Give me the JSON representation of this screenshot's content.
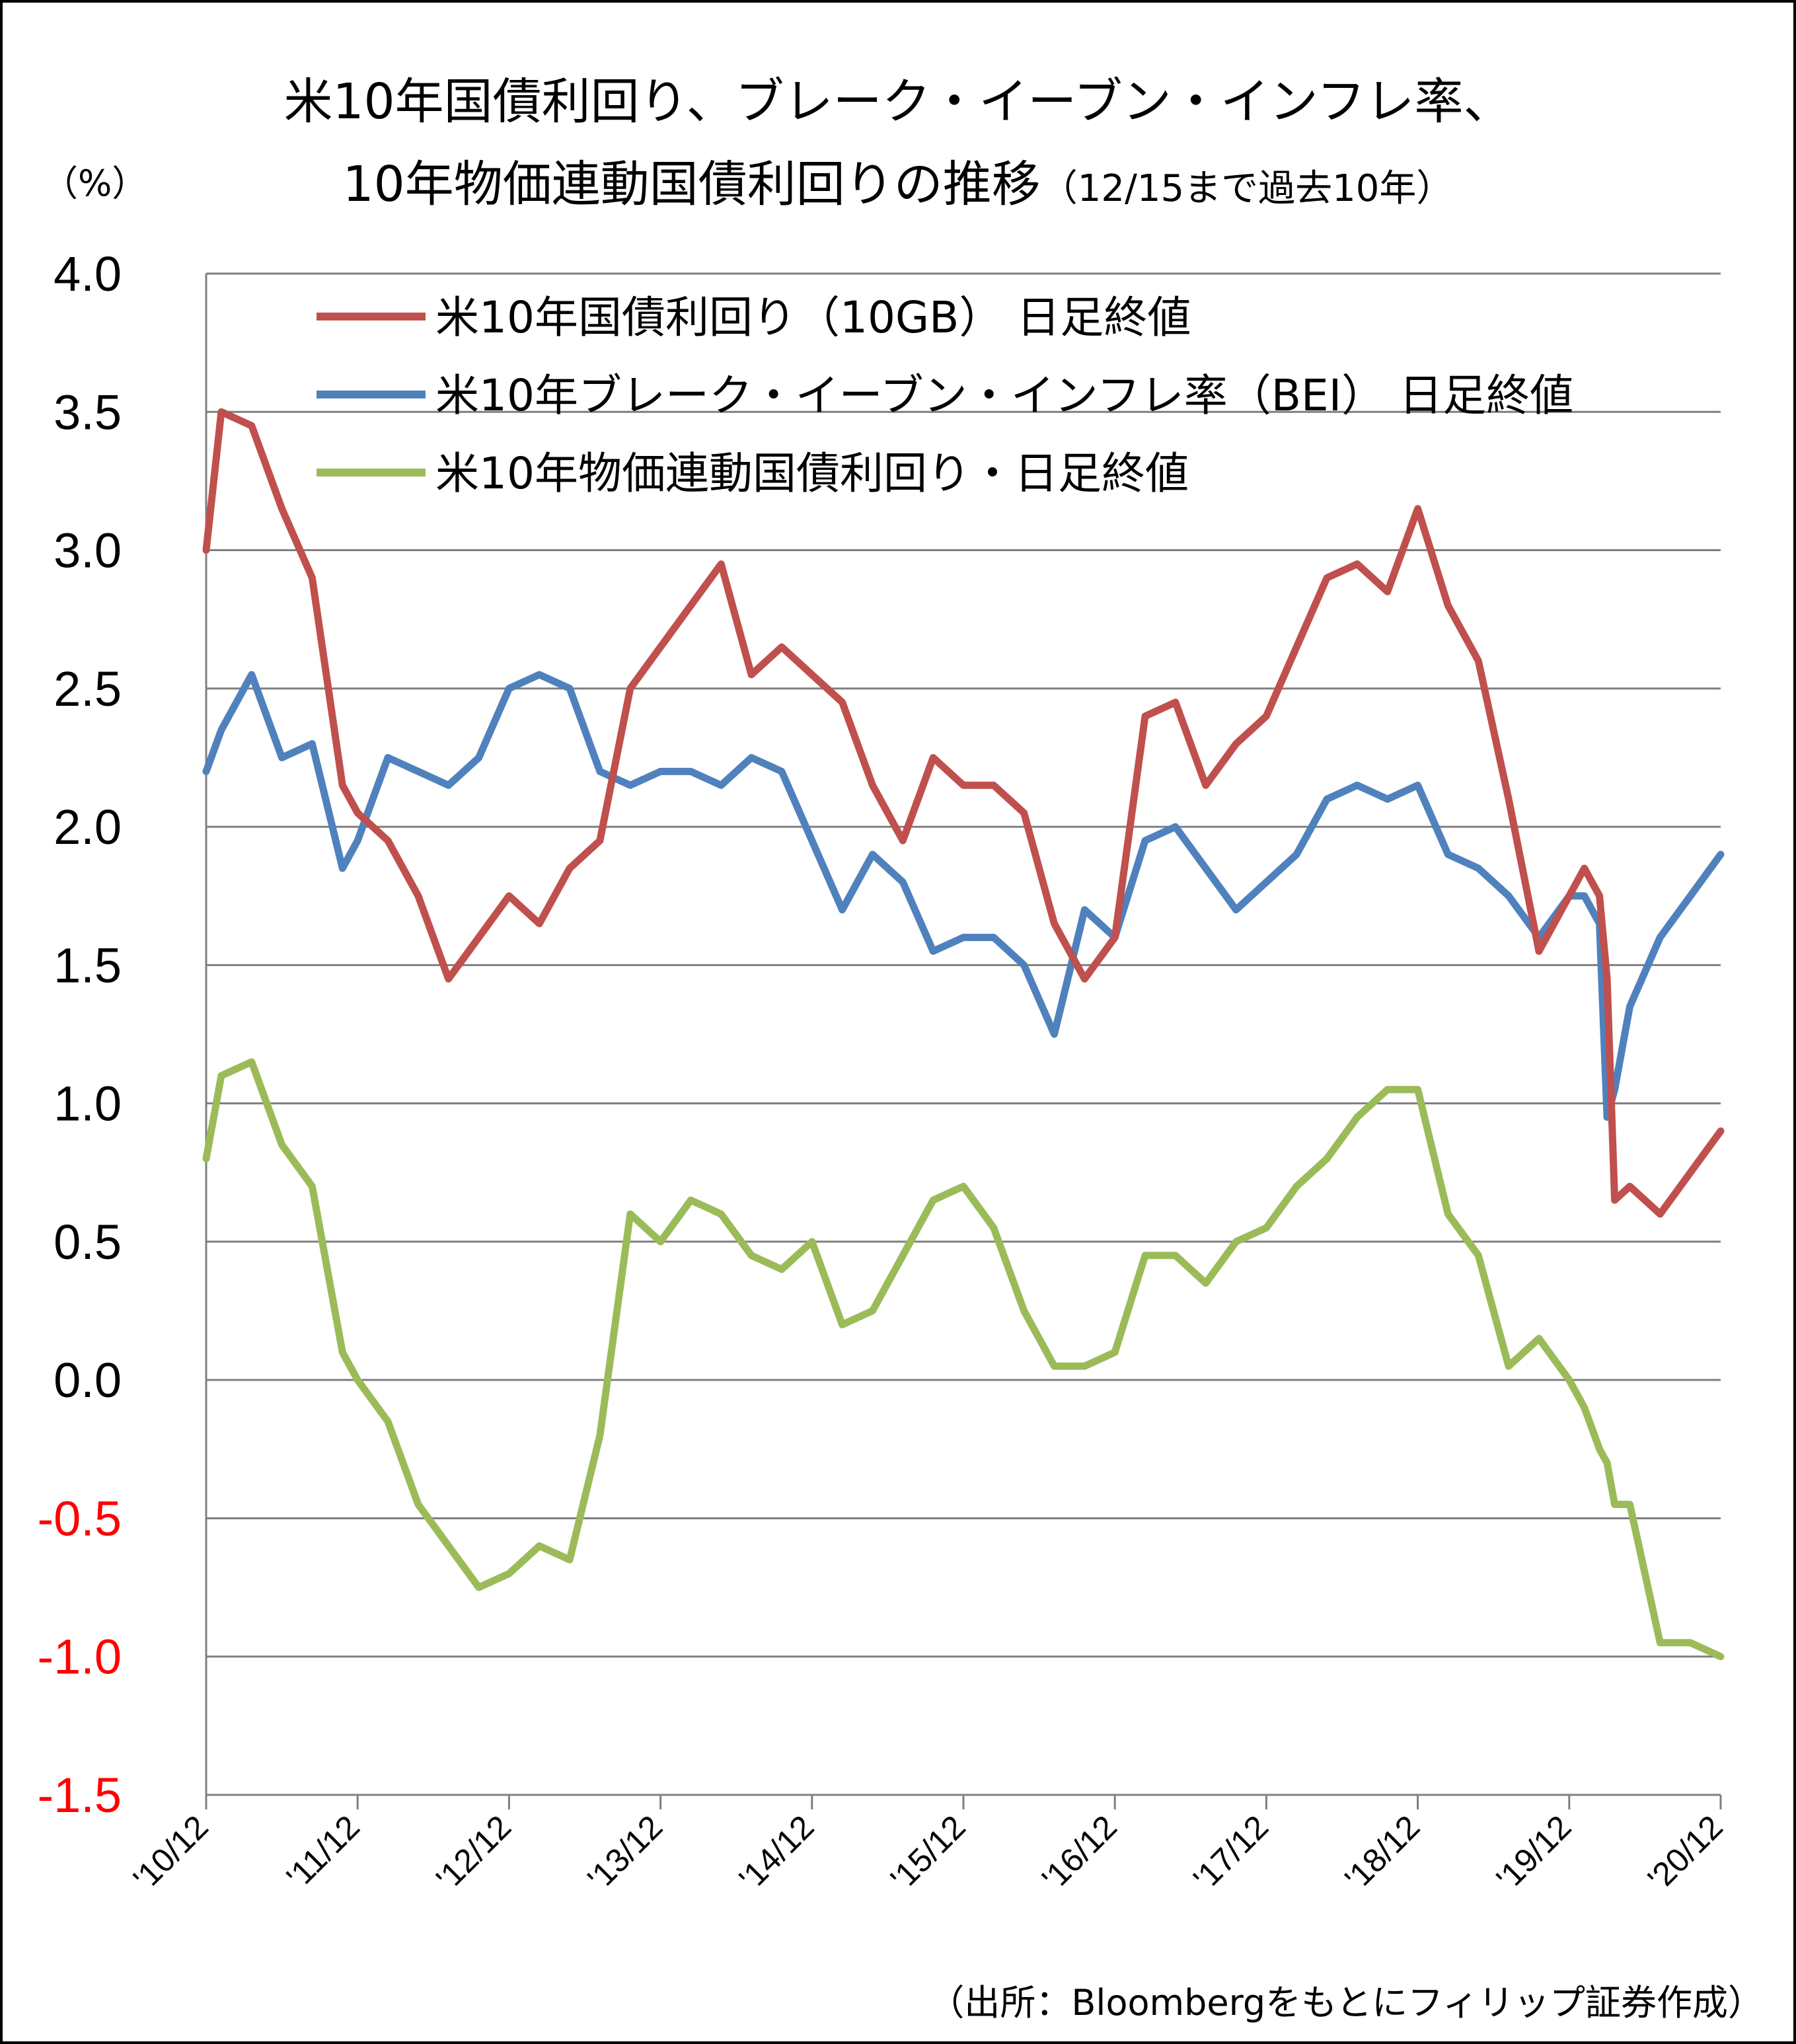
{
  "chart_data": {
    "type": "line",
    "title_line1": "米10年国債利回り、ブレーク・イーブン・インフレ率、",
    "title_line2": "10年物価連動国債利回りの推移",
    "title_suffix": "（12/15まで過去10年）",
    "ylabel": "（%）",
    "ylim": [
      -1.5,
      4.0
    ],
    "yticks": [
      {
        "value": 4.0,
        "label": "4.0",
        "color": "#000000"
      },
      {
        "value": 3.5,
        "label": "3.5",
        "color": "#000000"
      },
      {
        "value": 3.0,
        "label": "3.0",
        "color": "#000000"
      },
      {
        "value": 2.5,
        "label": "2.5",
        "color": "#000000"
      },
      {
        "value": 2.0,
        "label": "2.0",
        "color": "#000000"
      },
      {
        "value": 1.5,
        "label": "1.5",
        "color": "#000000"
      },
      {
        "value": 1.0,
        "label": "1.0",
        "color": "#000000"
      },
      {
        "value": 0.5,
        "label": "0.5",
        "color": "#000000"
      },
      {
        "value": 0.0,
        "label": "0.0",
        "color": "#000000"
      },
      {
        "value": -0.5,
        "label": "-0.5",
        "color": "#ff0000"
      },
      {
        "value": -1.0,
        "label": "-1.0",
        "color": "#ff0000"
      },
      {
        "value": -1.5,
        "label": "-1.5",
        "color": "#ff0000"
      }
    ],
    "x_categories": [
      "'10/12",
      "'11/12",
      "'12/12",
      "'13/12",
      "'14/12",
      "'15/12",
      "'16/12",
      "'17/12",
      "'18/12",
      "'19/12",
      "'20/12"
    ],
    "grid": true,
    "legend_position": "top-left",
    "source": "（出所：Bloombergをもとにフィリップ証券作成）",
    "x": [
      0,
      0.1,
      0.3,
      0.5,
      0.7,
      0.9,
      1.0,
      1.2,
      1.4,
      1.6,
      1.8,
      2.0,
      2.2,
      2.4,
      2.6,
      2.8,
      3.0,
      3.2,
      3.4,
      3.6,
      3.8,
      4.0,
      4.2,
      4.4,
      4.6,
      4.8,
      5.0,
      5.2,
      5.4,
      5.6,
      5.8,
      6.0,
      6.2,
      6.4,
      6.6,
      6.8,
      7.0,
      7.2,
      7.4,
      7.6,
      7.8,
      8.0,
      8.2,
      8.4,
      8.6,
      8.8,
      9.0,
      9.1,
      9.2,
      9.25,
      9.3,
      9.4,
      9.6,
      9.8,
      10.0
    ],
    "series": [
      {
        "name": "米10年国債利回り（10GB） 日足終値",
        "color": "#c0504d",
        "values": [
          3.0,
          3.5,
          3.45,
          3.15,
          2.9,
          2.15,
          2.05,
          1.95,
          1.75,
          1.45,
          1.6,
          1.75,
          1.65,
          1.85,
          1.95,
          2.5,
          2.65,
          2.8,
          2.95,
          2.55,
          2.65,
          2.55,
          2.45,
          2.15,
          1.95,
          2.25,
          2.15,
          2.15,
          2.05,
          1.65,
          1.45,
          1.6,
          2.4,
          2.45,
          2.15,
          2.3,
          2.4,
          2.65,
          2.9,
          2.95,
          2.85,
          3.15,
          2.8,
          2.6,
          2.1,
          1.55,
          1.75,
          1.85,
          1.75,
          1.45,
          0.65,
          0.7,
          0.6,
          0.75,
          0.9
        ]
      },
      {
        "name": "米10年ブレーク・イーブン・インフレ率（BEI） 日足終値",
        "color": "#4f81bd",
        "values": [
          2.2,
          2.35,
          2.55,
          2.25,
          2.3,
          1.85,
          1.95,
          2.25,
          2.2,
          2.15,
          2.25,
          2.5,
          2.55,
          2.5,
          2.2,
          2.15,
          2.2,
          2.2,
          2.15,
          2.25,
          2.2,
          1.95,
          1.7,
          1.9,
          1.8,
          1.55,
          1.6,
          1.6,
          1.5,
          1.25,
          1.7,
          1.6,
          1.95,
          2.0,
          1.85,
          1.7,
          1.8,
          1.9,
          2.1,
          2.15,
          2.1,
          2.15,
          1.9,
          1.85,
          1.75,
          1.6,
          1.75,
          1.75,
          1.65,
          0.95,
          1.05,
          1.35,
          1.6,
          1.75,
          1.9
        ]
      },
      {
        "name": "米10年物価連動国債利回り・日足終値",
        "color": "#9bbb59",
        "values": [
          0.8,
          1.1,
          1.15,
          0.85,
          0.7,
          0.1,
          0.0,
          -0.15,
          -0.45,
          -0.6,
          -0.75,
          -0.7,
          -0.6,
          -0.65,
          -0.2,
          0.6,
          0.5,
          0.65,
          0.6,
          0.45,
          0.4,
          0.5,
          0.2,
          0.25,
          0.45,
          0.65,
          0.7,
          0.55,
          0.25,
          0.05,
          0.05,
          0.1,
          0.45,
          0.45,
          0.35,
          0.5,
          0.55,
          0.7,
          0.8,
          0.95,
          1.05,
          1.05,
          0.6,
          0.45,
          0.05,
          0.15,
          0.0,
          -0.1,
          -0.25,
          -0.3,
          -0.45,
          -0.45,
          -0.95,
          -0.95,
          -1.0
        ]
      }
    ]
  }
}
